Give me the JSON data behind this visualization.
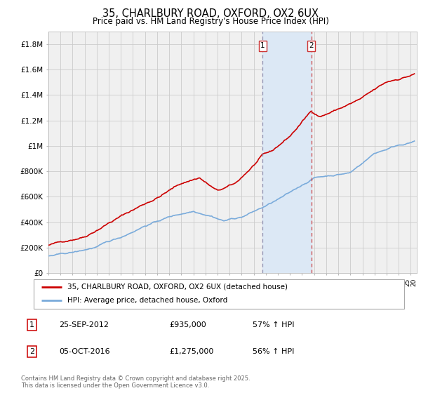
{
  "title": "35, CHARLBURY ROAD, OXFORD, OX2 6UX",
  "subtitle": "Price paid vs. HM Land Registry's House Price Index (HPI)",
  "red_label": "35, CHARLBURY ROAD, OXFORD, OX2 6UX (detached house)",
  "blue_label": "HPI: Average price, detached house, Oxford",
  "annotation1_box": "1",
  "annotation1_date": "25-SEP-2012",
  "annotation1_price": "£935,000",
  "annotation1_hpi": "57% ↑ HPI",
  "annotation2_box": "2",
  "annotation2_date": "05-OCT-2016",
  "annotation2_price": "£1,275,000",
  "annotation2_hpi": "56% ↑ HPI",
  "footer": "Contains HM Land Registry data © Crown copyright and database right 2025.\nThis data is licensed under the Open Government Licence v3.0.",
  "vline1_year": 2012.73,
  "vline2_year": 2016.76,
  "ylim": [
    0,
    1900000
  ],
  "yticks": [
    0,
    200000,
    400000,
    600000,
    800000,
    1000000,
    1200000,
    1400000,
    1600000,
    1800000
  ],
  "ytick_labels": [
    "£0",
    "£200K",
    "£400K",
    "£600K",
    "£800K",
    "£1M",
    "£1.2M",
    "£1.4M",
    "£1.6M",
    "£1.8M"
  ],
  "bg_color": "#f0f0f0",
  "grid_color": "#cccccc",
  "red_color": "#cc0000",
  "blue_color": "#7aabdb",
  "shade_color": "#dce8f5",
  "vline1_color": "#aaaacc",
  "vline2_color": "#cc3333",
  "xlim_start": 1995.0,
  "xlim_end": 2025.5
}
